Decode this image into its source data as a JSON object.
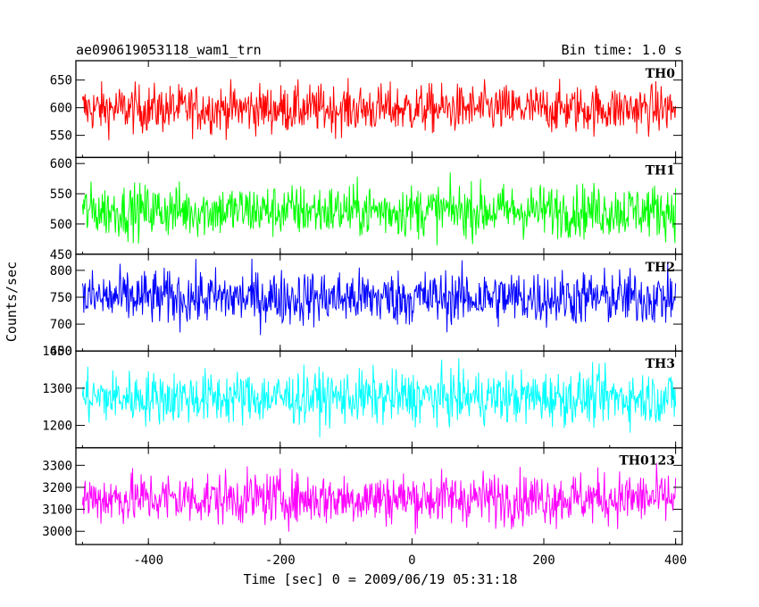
{
  "chart_data": {
    "type": "line",
    "title": "ae090619053118_wam1_trn",
    "subtitle": "Bin time: 1.0 s",
    "xlabel": "Time [sec] 0 = 2009/06/19 05:31:18",
    "ylabel": "Counts/sec",
    "xlim": [
      -510,
      410
    ],
    "xticks": [
      -400,
      -200,
      0,
      200,
      400
    ],
    "x_start": -500,
    "x_end": 400,
    "panels": [
      {
        "name": "TH0",
        "color": "#ff0000",
        "ylim": [
          510,
          685
        ],
        "yticks": [
          550,
          600,
          650
        ],
        "mean": 598,
        "noise": 22
      },
      {
        "name": "TH1",
        "color": "#00ff00",
        "ylim": [
          450,
          610
        ],
        "yticks": [
          450,
          500,
          550,
          600
        ],
        "mean": 522,
        "noise": 22
      },
      {
        "name": "TH2",
        "color": "#0000ff",
        "ylim": [
          650,
          830
        ],
        "yticks": [
          650,
          700,
          750,
          800
        ],
        "mean": 749,
        "noise": 26
      },
      {
        "name": "TH3",
        "color": "#00ffff",
        "ylim": [
          1140,
          1400
        ],
        "yticks": [
          1200,
          1300,
          1400
        ],
        "mean": 1275,
        "noise": 36
      },
      {
        "name": "TH0123",
        "color": "#ff00ff",
        "ylim": [
          2940,
          3380
        ],
        "yticks": [
          3000,
          3100,
          3200,
          3300
        ],
        "mean": 3150,
        "noise": 60
      }
    ]
  }
}
